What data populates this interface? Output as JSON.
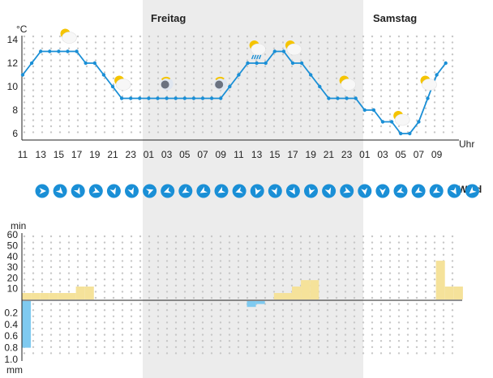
{
  "chart_data": [
    {
      "type": "line",
      "unit_label": "°C",
      "time_unit_label": "Uhr",
      "day_labels": [
        "Freitag",
        "Samstag"
      ],
      "hour_ticks": [
        "11",
        "13",
        "15",
        "17",
        "19",
        "21",
        "23",
        "01",
        "03",
        "05",
        "07",
        "09",
        "11",
        "13",
        "15",
        "17",
        "19",
        "21",
        "23",
        "01",
        "03",
        "05",
        "07",
        "09"
      ],
      "ylim": [
        5,
        14
      ],
      "y_ticks": [
        6,
        8,
        10,
        12,
        14
      ],
      "x_hours": [
        11,
        12,
        13,
        14,
        15,
        16,
        17,
        18,
        19,
        20,
        21,
        22,
        23,
        24,
        25,
        26,
        27,
        28,
        29,
        30,
        31,
        32,
        33,
        34,
        35,
        36,
        37,
        38,
        39,
        40,
        41,
        42,
        43,
        44,
        45,
        46,
        47,
        48,
        49,
        50,
        51,
        52,
        53,
        54,
        55,
        56,
        57,
        58
      ],
      "temperature": [
        11,
        12,
        13,
        13,
        13,
        13,
        13,
        12,
        12,
        11,
        10,
        9,
        9,
        9,
        9,
        9,
        9,
        9,
        9,
        9,
        9,
        9,
        9,
        10,
        11,
        12,
        12,
        12,
        13,
        13,
        12,
        12,
        11,
        10,
        9,
        9,
        9,
        9,
        8,
        8,
        7,
        7,
        6,
        6,
        7,
        9,
        11,
        12
      ],
      "weather_icons": [
        {
          "hour": 16,
          "icon": "sun-cloud-icon"
        },
        {
          "hour": 22,
          "icon": "sun-cloud-icon"
        },
        {
          "hour": 27,
          "icon": "moon-cloud-icon"
        },
        {
          "hour": 33,
          "icon": "moon-cloud-icon"
        },
        {
          "hour": 37,
          "icon": "sun-cloud-rain-icon"
        },
        {
          "hour": 41,
          "icon": "sun-cloud-icon"
        },
        {
          "hour": 47,
          "icon": "sun-cloud-icon"
        },
        {
          "hour": 53,
          "icon": "sun-cloud-icon"
        },
        {
          "hour": 56,
          "icon": "sun-cloud-icon"
        }
      ]
    },
    {
      "type": "wind",
      "label": "Wind",
      "directions_deg": [
        90,
        135,
        150,
        110,
        160,
        160,
        70,
        250,
        240,
        240,
        240,
        250,
        200,
        160,
        150,
        200,
        160,
        110,
        170,
        180,
        250,
        240,
        240,
        150,
        230
      ]
    },
    {
      "type": "bar",
      "sun_unit_label": "min",
      "precip_unit_label": "mm",
      "sun_ticks": [
        10,
        20,
        30,
        40,
        50,
        60
      ],
      "precip_ticks": [
        "0.2",
        "0.4",
        "0.6",
        "0.8",
        "1.0"
      ],
      "sunshine_minutes": [
        6,
        6,
        6,
        6,
        6,
        6,
        12,
        12,
        0,
        0,
        0,
        0,
        0,
        0,
        0,
        0,
        0,
        0,
        0,
        0,
        0,
        0,
        0,
        0,
        0,
        0,
        0,
        0,
        6,
        6,
        12,
        18,
        18,
        0,
        0,
        0,
        0,
        0,
        0,
        0,
        0,
        0,
        0,
        0,
        0,
        0,
        36,
        12,
        12
      ],
      "precipitation_mm": [
        0.8,
        0,
        0,
        0,
        0,
        0,
        0,
        0,
        0,
        0,
        0,
        0,
        0,
        0,
        0,
        0,
        0,
        0,
        0,
        0,
        0,
        0,
        0,
        0,
        0,
        0.1,
        0.05,
        0,
        0,
        0,
        0,
        0,
        0,
        0,
        0,
        0,
        0,
        0,
        0,
        0,
        0,
        0,
        0,
        0,
        0,
        0,
        0,
        0,
        0
      ]
    }
  ],
  "colors": {
    "temperature_line": "#1a8fd6",
    "sunshine_bar": "#f5e29a",
    "precip_bar": "#7fcaf0",
    "night_band": "#ececec",
    "wind_circle": "#1a8fd6",
    "sun": "#f5c400",
    "moon": "#6b7280"
  }
}
